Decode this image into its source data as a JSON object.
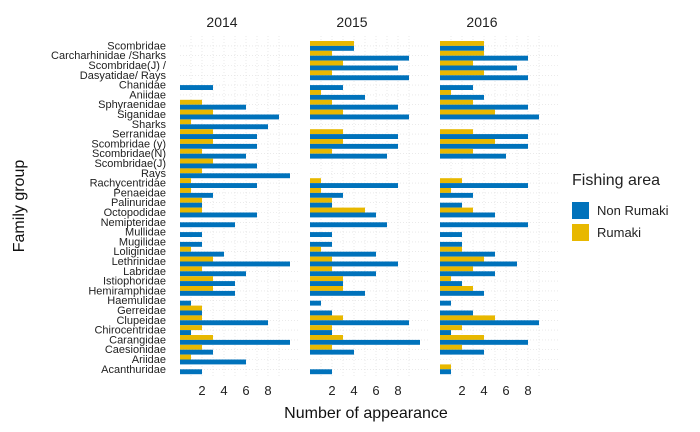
{
  "chart_data": {
    "type": "bar",
    "orientation": "horizontal",
    "facet_titles": [
      "2014",
      "2015",
      "2016"
    ],
    "xlabel": "Number of appearance",
    "ylabel": "Family group",
    "xticks": [
      2,
      4,
      6,
      8
    ],
    "xlim": [
      0,
      10
    ],
    "grid": "minor dotted",
    "legend_position": "right",
    "legend_title": "Fishing area",
    "legend": [
      {
        "name": "Non Rumaki",
        "color": "#0072BB"
      },
      {
        "name": "Rumaki",
        "color": "#E8B800"
      }
    ],
    "categories": [
      "Scombridae",
      "Carcharhinidae /Sharks",
      "Scombridae(J) /",
      "Dasyatidae/ Rays",
      "Chanidae",
      "Aniidae",
      "Sphyraenidae",
      "Siganidae",
      "Sharks",
      "Serranidae",
      "Scombridae (y)",
      "Scombridae(N)",
      "Scombridae(J)",
      "Rays",
      "Rachycentridae",
      "Penaeidae",
      "Palinuridae",
      "Octopodidae",
      "Nemipteridae",
      "Mullidae",
      "Mugilidae",
      "Loliginidae",
      "Lethrinidae",
      "Labridae",
      "Istiophoridae",
      "Hemiramphidae",
      "Haemulidae",
      "Gerreidae",
      "Clupeidae",
      "Chirocentridae",
      "Carangidae",
      "Caesionidae",
      "Ariidae",
      "Acanthuridae"
    ],
    "facets": [
      {
        "year": "2014",
        "non_rumaki": [
          0,
          0,
          0,
          0,
          3,
          0,
          6,
          9,
          8,
          7,
          7,
          6,
          7,
          10,
          7,
          3,
          2,
          7,
          5,
          2,
          2,
          4,
          10,
          6,
          5,
          5,
          1,
          2,
          8,
          1,
          10,
          3,
          6,
          2
        ],
        "rumaki": [
          0,
          0,
          0,
          0,
          0,
          0,
          2,
          3,
          1,
          3,
          3,
          2,
          3,
          2,
          1,
          1,
          2,
          2,
          0,
          0,
          0,
          1,
          3,
          2,
          3,
          3,
          0,
          2,
          2,
          2,
          3,
          2,
          1,
          0
        ]
      },
      {
        "year": "2015",
        "non_rumaki": [
          4,
          9,
          8,
          9,
          3,
          5,
          8,
          9,
          0,
          8,
          8,
          7,
          0,
          0,
          8,
          3,
          2,
          6,
          7,
          2,
          2,
          6,
          8,
          6,
          3,
          5,
          1,
          2,
          9,
          2,
          10,
          4,
          0,
          2
        ],
        "rumaki": [
          4,
          2,
          3,
          2,
          0,
          1,
          2,
          3,
          0,
          3,
          3,
          2,
          0,
          0,
          1,
          1,
          2,
          5,
          0,
          0,
          0,
          1,
          2,
          2,
          3,
          3,
          0,
          0,
          3,
          2,
          3,
          2,
          0,
          0
        ]
      },
      {
        "year": "2016",
        "non_rumaki": [
          4,
          8,
          7,
          8,
          3,
          4,
          8,
          9,
          0,
          8,
          8,
          6,
          0,
          0,
          8,
          3,
          2,
          5,
          8,
          2,
          2,
          5,
          7,
          5,
          2,
          4,
          1,
          3,
          9,
          1,
          8,
          4,
          0,
          1
        ],
        "rumaki": [
          4,
          4,
          3,
          4,
          0,
          1,
          3,
          5,
          0,
          3,
          5,
          3,
          0,
          0,
          2,
          1,
          0,
          3,
          0,
          0,
          0,
          2,
          4,
          3,
          1,
          3,
          0,
          0,
          5,
          2,
          4,
          2,
          0,
          1
        ]
      }
    ]
  }
}
